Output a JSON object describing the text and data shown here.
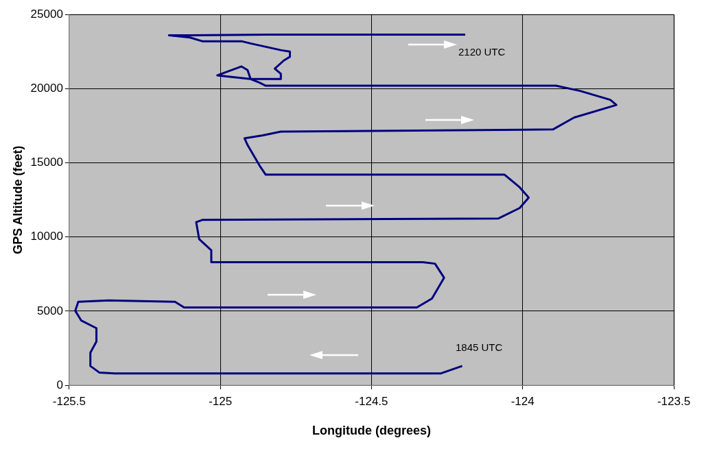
{
  "chart_data": {
    "type": "line",
    "xlabel": "Longitude (degrees)",
    "ylabel": "GPS Altitude (feet)",
    "xlim": [
      -125.5,
      -123.5
    ],
    "xticks": [
      -125.5,
      -125,
      -124.5,
      -124,
      -123.5
    ],
    "ylim": [
      0,
      25000
    ],
    "yticks": [
      0,
      5000,
      10000,
      15000,
      20000,
      25000
    ],
    "grid": true,
    "legend": false,
    "marker": "none",
    "line_style": "solid",
    "series": [
      {
        "color": "#000080",
        "x": [
          -124.2,
          -124.27,
          -125.35,
          -125.4,
          -125.43,
          -125.43,
          -125.41,
          -125.41,
          -125.46,
          -125.48,
          -125.47,
          -125.37,
          -125.15,
          -125.12,
          -124.35,
          -124.3,
          -124.26,
          -124.29,
          -124.33,
          -125.03,
          -125.03,
          -125.07,
          -125.08,
          -125.06,
          -124.08,
          -124.01,
          -123.98,
          -124.01,
          -124.06,
          -124.85,
          -124.87,
          -124.91,
          -124.92,
          -124.86,
          -124.8,
          -123.9,
          -123.83,
          -123.69,
          -123.71,
          -123.81,
          -123.89,
          -124.85,
          -124.87,
          -124.9,
          -125.01,
          -124.95,
          -124.93,
          -124.91,
          -124.9,
          -124.8,
          -124.8,
          -124.82,
          -124.79,
          -124.77,
          -124.77,
          -124.8,
          -124.9,
          -124.93,
          -125.06,
          -125.1,
          -125.17,
          -125.1,
          -124.84,
          -124.19
        ],
        "values": [
          1300,
          800,
          800,
          850,
          1300,
          2200,
          2950,
          3850,
          4360,
          5020,
          5630,
          5720,
          5630,
          5250,
          5250,
          5850,
          7250,
          8200,
          8300,
          8300,
          9100,
          9850,
          11000,
          11150,
          11250,
          11950,
          12650,
          13350,
          14200,
          14200,
          14800,
          16200,
          16650,
          16850,
          17100,
          17250,
          18050,
          18900,
          19250,
          19850,
          20200,
          20200,
          20400,
          20650,
          20900,
          21350,
          21500,
          21250,
          20650,
          20650,
          21000,
          21350,
          21900,
          22150,
          22500,
          22600,
          23050,
          23200,
          23200,
          23450,
          23600,
          23600,
          23650,
          23650
        ]
      }
    ],
    "annotations": [
      "2120 UTC",
      "1845 UTC"
    ]
  }
}
